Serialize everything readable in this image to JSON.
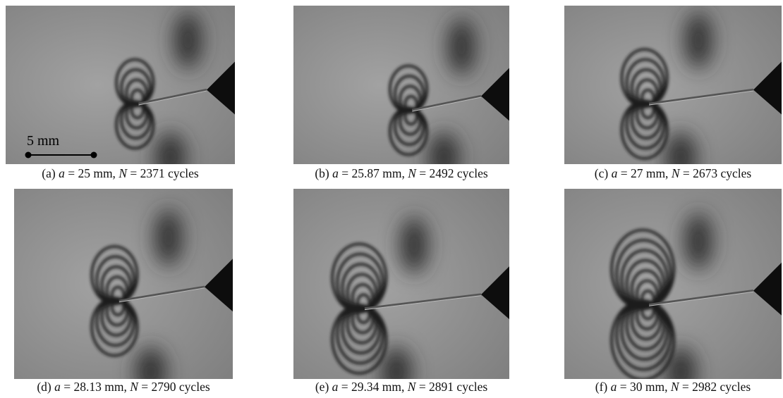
{
  "panels": [
    {
      "label": "(a)",
      "var_a": "a",
      "a_text": "= 25 mm,",
      "var_n": "N",
      "n_text": "= 2371 cycles"
    },
    {
      "label": "(b)",
      "var_a": "a",
      "a_text": "= 25.87 mm,",
      "var_n": "N",
      "n_text": "= 2492 cycles"
    },
    {
      "label": "(c)",
      "var_a": "a",
      "a_text": "= 27 mm,",
      "var_n": "N",
      "n_text": "= 2673 cycles"
    },
    {
      "label": "(d)",
      "var_a": "a",
      "a_text": "= 28.13 mm,",
      "var_n": "N",
      "n_text": "= 2790 cycles"
    },
    {
      "label": "(e)",
      "var_a": "a",
      "a_text": "= 29.34 mm,",
      "var_n": "N",
      "n_text": "= 2891 cycles"
    },
    {
      "label": "(f)",
      "var_a": "a",
      "a_text": "= 30 mm,",
      "var_n": "N",
      "n_text": "= 2982 cycles"
    }
  ],
  "scale_bar": {
    "label": "5 mm"
  }
}
